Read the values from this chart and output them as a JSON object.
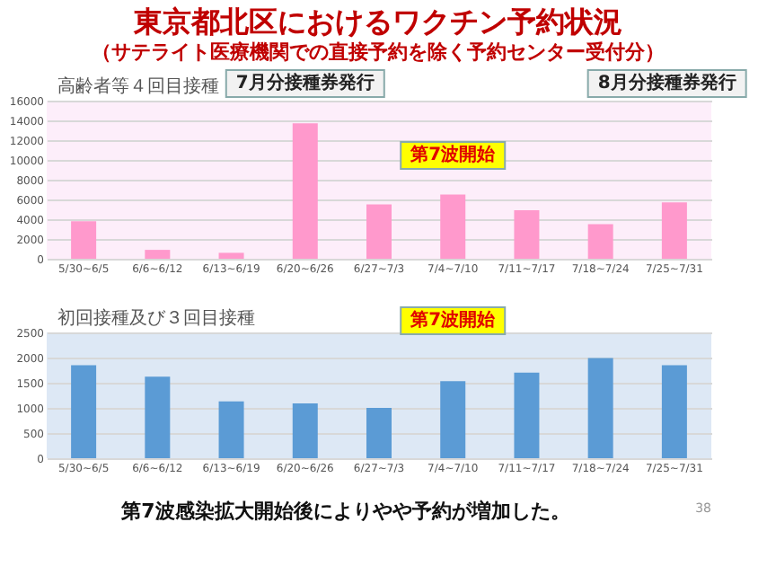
{
  "chart_data": [
    {
      "type": "bar",
      "title": "東京都北区におけるワクチン予約状況",
      "subtitle": "（サテライト医療機関での直接予約を除く予約センター受付分）",
      "categories": [
        "5/30~6/5",
        "6/6~6/12",
        "6/13~6/19",
        "6/20~6/26",
        "6/27~7/3",
        "7/4~7/10",
        "7/11~7/17",
        "7/18~7/24",
        "7/25~7/31"
      ],
      "values": [
        3800,
        900,
        600,
        13700,
        5500,
        6500,
        4900,
        3500,
        5700
      ],
      "color": "#ff99cc",
      "ylim": [
        0,
        16000
      ],
      "yticks": [
        0,
        2000,
        4000,
        6000,
        8000,
        10000,
        12000,
        14000,
        16000
      ],
      "grid": "y",
      "annotations": [
        "高齢者等４回目接種",
        "7月分接種券発行",
        "8月分接種券発行",
        "第7波開始"
      ]
    },
    {
      "type": "bar",
      "categories": [
        "5/30~6/5",
        "6/6~6/12",
        "6/13~6/19",
        "6/20~6/26",
        "6/27~7/3",
        "7/4~7/10",
        "7/11~7/17",
        "7/18~7/24",
        "7/25~7/31"
      ],
      "values": [
        1850,
        1620,
        1130,
        1090,
        1000,
        1530,
        1700,
        1990,
        1850
      ],
      "color": "#5b9bd5",
      "ylim": [
        0,
        2500
      ],
      "yticks": [
        0,
        500,
        1000,
        1500,
        2000,
        2500
      ],
      "grid": "y",
      "annotations": [
        "初回接種及び３回目接種",
        "第7波開始",
        "第7波感染拡大開始後によりやや予約が増加した。",
        "38"
      ]
    }
  ]
}
